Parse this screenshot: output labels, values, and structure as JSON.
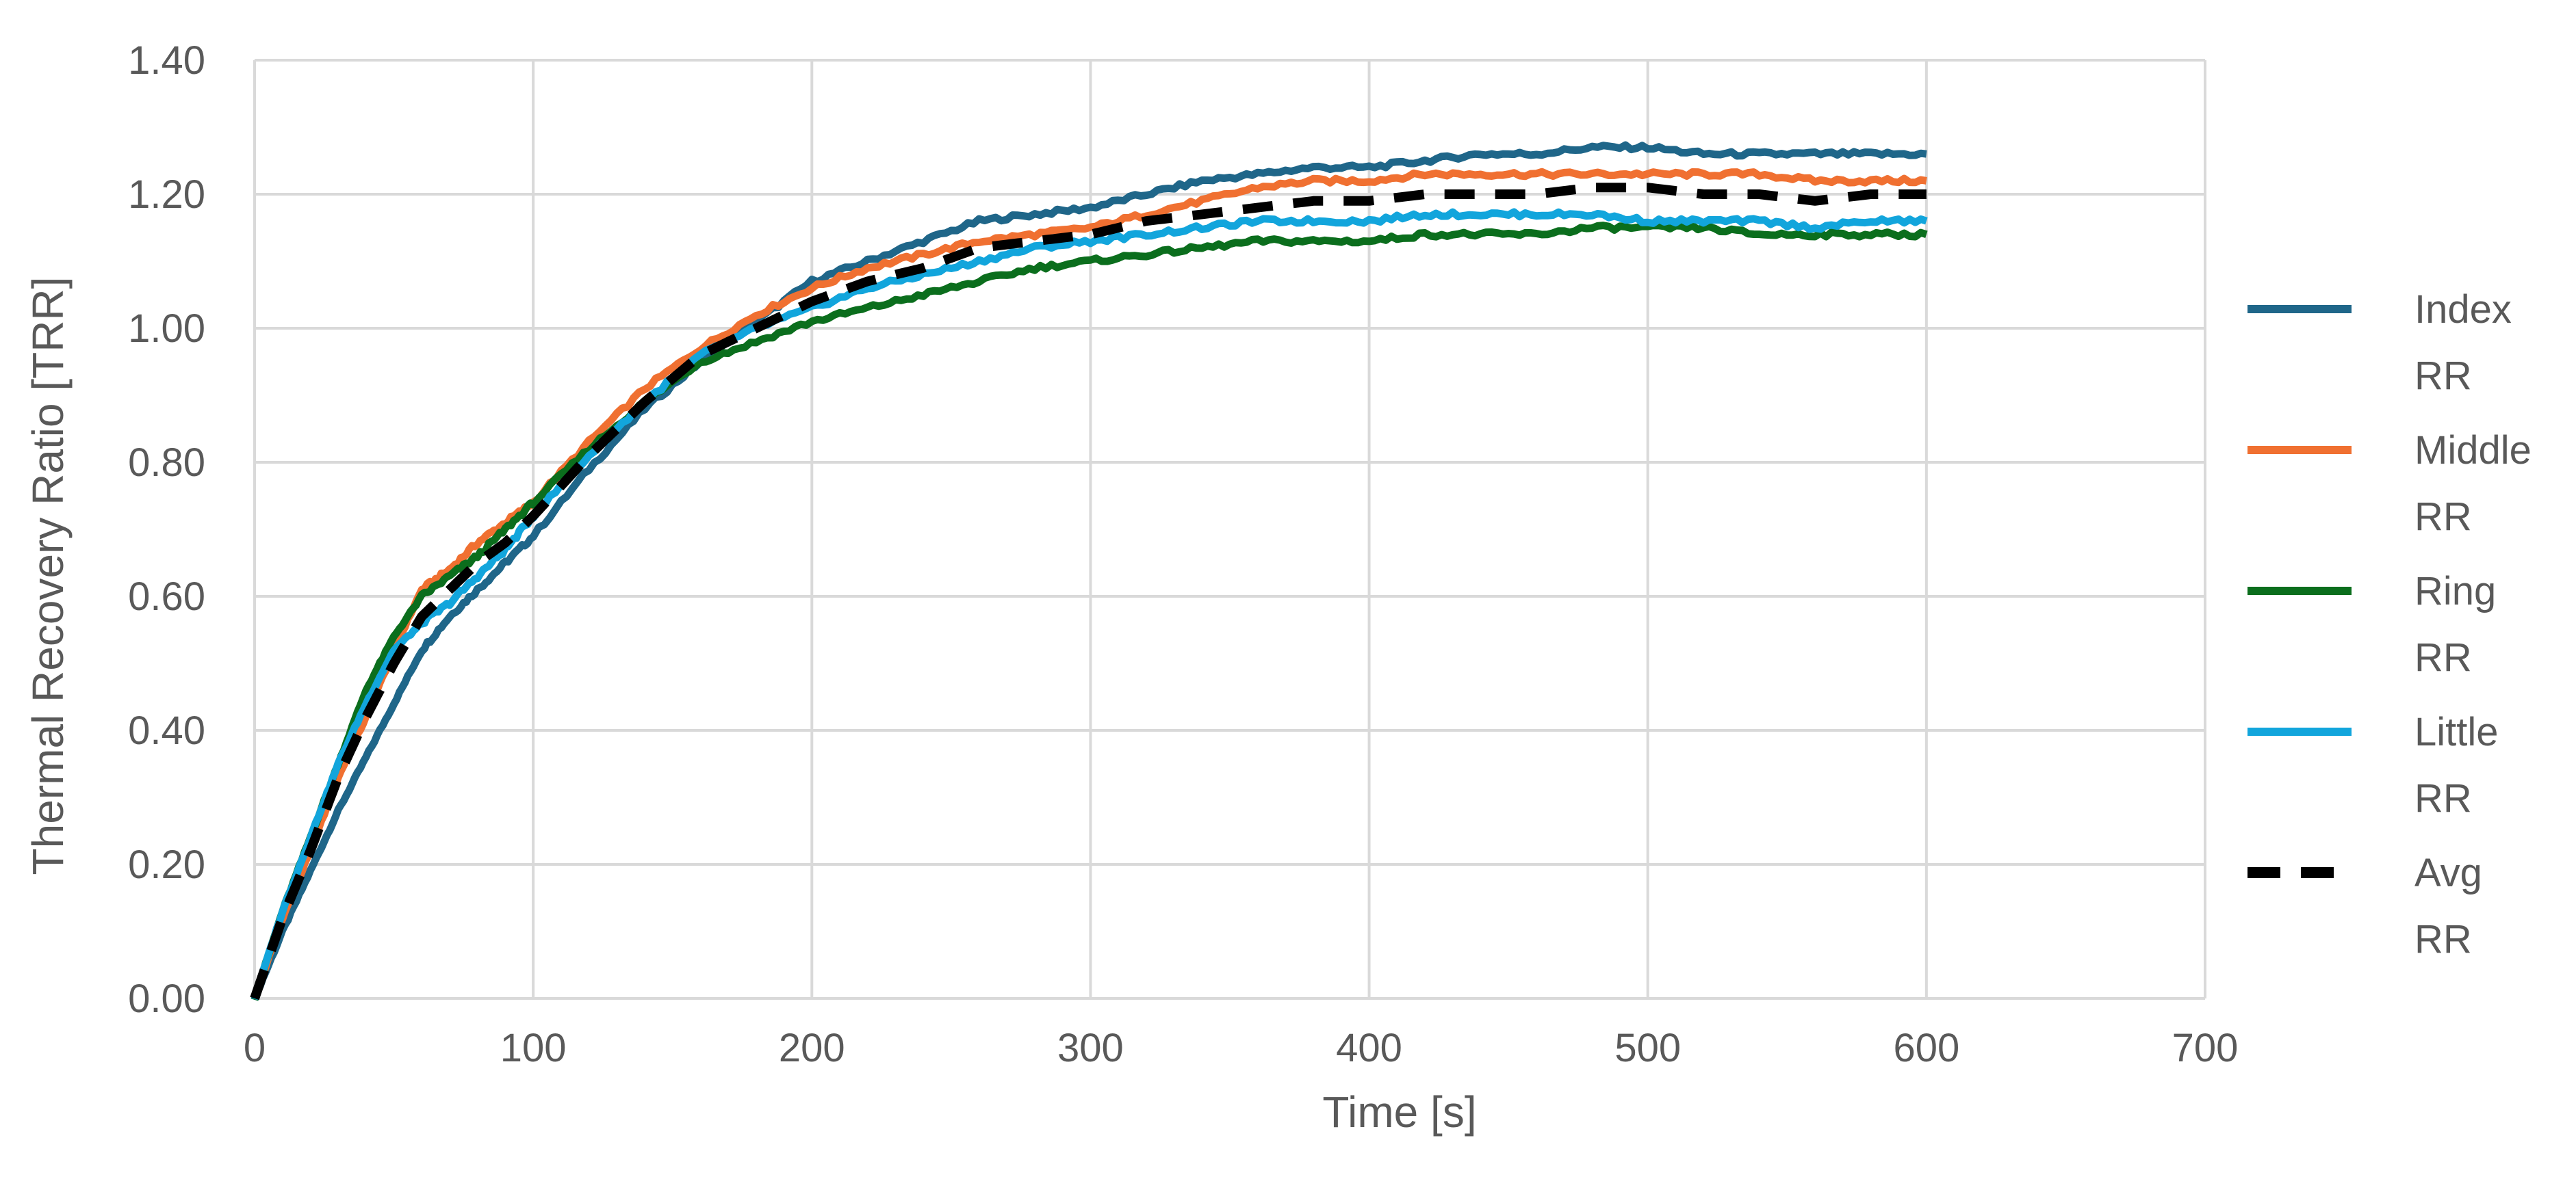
{
  "chart_data": {
    "type": "line",
    "title": "",
    "xlabel": "Time [s]",
    "ylabel": "Thermal Recovery Ratio [TRR]",
    "xlim": [
      0,
      700
    ],
    "ylim": [
      0,
      1.4
    ],
    "x_ticks": [
      "0",
      "100",
      "200",
      "300",
      "400",
      "500",
      "600",
      "700"
    ],
    "y_ticks": [
      "0.00",
      "0.20",
      "0.40",
      "0.60",
      "0.80",
      "1.00",
      "1.20",
      "1.40"
    ],
    "grid": true,
    "legend_position": "right",
    "x": [
      0,
      10,
      20,
      30,
      40,
      50,
      60,
      70,
      80,
      90,
      100,
      120,
      140,
      160,
      180,
      200,
      220,
      240,
      260,
      280,
      300,
      320,
      340,
      360,
      380,
      400,
      420,
      440,
      460,
      480,
      500,
      520,
      540,
      560,
      580,
      600
    ],
    "series": [
      {
        "name_line1": "Index",
        "name_line2": "RR",
        "color": "#1f6689",
        "style": "solid",
        "values": [
          0.0,
          0.1,
          0.19,
          0.28,
          0.36,
          0.44,
          0.52,
          0.57,
          0.61,
          0.65,
          0.69,
          0.79,
          0.88,
          0.95,
          1.01,
          1.07,
          1.1,
          1.13,
          1.16,
          1.17,
          1.18,
          1.2,
          1.22,
          1.23,
          1.24,
          1.24,
          1.25,
          1.26,
          1.26,
          1.27,
          1.27,
          1.26,
          1.26,
          1.26,
          1.26,
          1.26
        ]
      },
      {
        "name_line1": "Middle",
        "name_line2": "RR",
        "color": "#f07031",
        "style": "solid",
        "values": [
          0.0,
          0.12,
          0.22,
          0.33,
          0.42,
          0.52,
          0.61,
          0.64,
          0.68,
          0.71,
          0.74,
          0.83,
          0.91,
          0.97,
          1.02,
          1.06,
          1.09,
          1.11,
          1.13,
          1.14,
          1.15,
          1.17,
          1.19,
          1.21,
          1.22,
          1.22,
          1.23,
          1.23,
          1.23,
          1.23,
          1.23,
          1.23,
          1.23,
          1.22,
          1.22,
          1.22
        ]
      },
      {
        "name_line1": "Ring",
        "name_line2": "RR",
        "color": "#0b6e1d",
        "style": "solid",
        "values": [
          0.0,
          0.13,
          0.24,
          0.35,
          0.46,
          0.54,
          0.6,
          0.63,
          0.66,
          0.7,
          0.74,
          0.82,
          0.89,
          0.95,
          0.98,
          1.01,
          1.03,
          1.05,
          1.07,
          1.09,
          1.1,
          1.11,
          1.12,
          1.13,
          1.13,
          1.13,
          1.14,
          1.14,
          1.14,
          1.15,
          1.15,
          1.15,
          1.14,
          1.14,
          1.14,
          1.14
        ]
      },
      {
        "name_line1": "Little",
        "name_line2": "RR",
        "color": "#12a5dc",
        "style": "solid",
        "values": [
          0.0,
          0.13,
          0.24,
          0.35,
          0.44,
          0.52,
          0.56,
          0.59,
          0.63,
          0.67,
          0.72,
          0.81,
          0.89,
          0.96,
          1.0,
          1.03,
          1.06,
          1.08,
          1.1,
          1.12,
          1.13,
          1.14,
          1.15,
          1.16,
          1.16,
          1.16,
          1.17,
          1.17,
          1.17,
          1.17,
          1.16,
          1.16,
          1.16,
          1.15,
          1.16,
          1.16
        ]
      },
      {
        "name_line1": "Avg",
        "name_line2": "RR",
        "color": "#000000",
        "style": "dashed",
        "values": [
          0.0,
          0.12,
          0.22,
          0.33,
          0.42,
          0.5,
          0.57,
          0.61,
          0.65,
          0.68,
          0.72,
          0.81,
          0.89,
          0.96,
          1.0,
          1.04,
          1.07,
          1.09,
          1.12,
          1.13,
          1.14,
          1.16,
          1.17,
          1.18,
          1.19,
          1.19,
          1.2,
          1.2,
          1.2,
          1.21,
          1.21,
          1.2,
          1.2,
          1.19,
          1.2,
          1.2
        ]
      }
    ]
  }
}
